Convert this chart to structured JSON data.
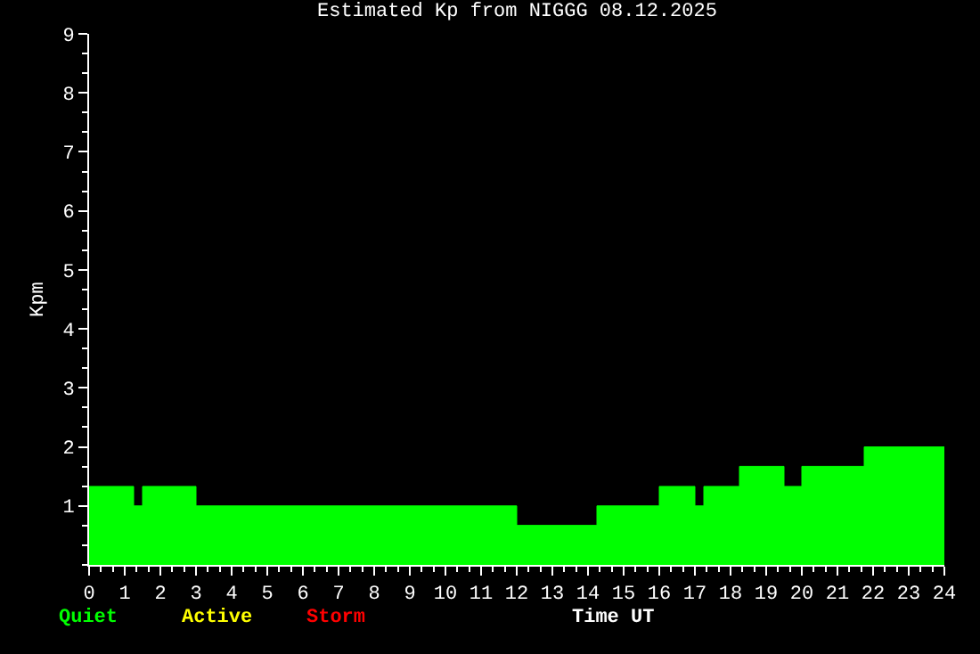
{
  "chart_data": {
    "type": "area",
    "title": "Estimated Kp from NIGGG 08.12.2025",
    "xlabel": "Time UT",
    "ylabel": "Kpm",
    "x": [
      0,
      1.25,
      1.25,
      1.5,
      1.5,
      3,
      3,
      12,
      12,
      14.25,
      14.25,
      16,
      16,
      17,
      17,
      17.25,
      17.25,
      18.25,
      18.25,
      19.5,
      19.5,
      20,
      20,
      21.75,
      21.75,
      24
    ],
    "series": [
      {
        "name": "Quiet",
        "color": "#00ff00",
        "values": [
          1.33,
          1.33,
          1,
          1,
          1.33,
          1.33,
          1,
          1,
          0.67,
          0.67,
          1,
          1,
          1.33,
          1.33,
          1,
          1,
          1.33,
          1.33,
          1.67,
          1.67,
          1.33,
          1.33,
          1.67,
          1.67,
          2,
          2
        ]
      },
      {
        "name": "Active",
        "color": "#ffff00",
        "values": [
          null,
          null,
          null,
          null,
          null,
          null,
          null,
          null,
          null,
          null,
          null,
          null,
          null,
          null,
          null,
          null,
          null,
          null,
          null,
          null,
          null,
          null,
          null,
          null,
          null,
          null
        ]
      },
      {
        "name": "Storm",
        "color": "#ff0000",
        "values": [
          null,
          null,
          null,
          null,
          null,
          null,
          null,
          null,
          null,
          null,
          null,
          null,
          null,
          null,
          null,
          null,
          null,
          null,
          null,
          null,
          null,
          null,
          null,
          null,
          null,
          null
        ]
      }
    ],
    "xlim": [
      0,
      24
    ],
    "xticks": [
      0,
      1,
      2,
      3,
      4,
      5,
      6,
      7,
      8,
      9,
      10,
      11,
      12,
      13,
      14,
      15,
      16,
      17,
      18,
      19,
      20,
      21,
      22,
      23,
      24
    ],
    "ylim": [
      0,
      9
    ],
    "yticks": [
      1,
      2,
      3,
      4,
      5,
      6,
      7,
      8,
      9
    ],
    "grid": false
  }
}
